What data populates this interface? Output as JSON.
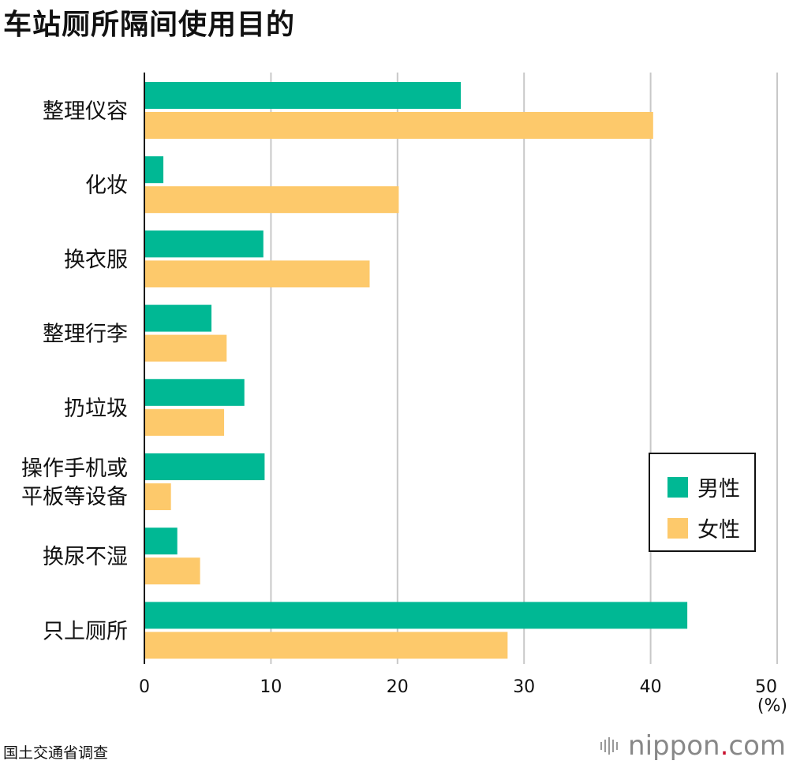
{
  "title": "车站厕所隔间使用目的",
  "source": "国土交通省调查",
  "logo": {
    "name": "nippon",
    "dot": ".",
    "suffix": "com"
  },
  "legend": [
    {
      "label": "男性",
      "color": "#00b894"
    },
    {
      "label": "女性",
      "color": "#fdc96b"
    }
  ],
  "chart_data": {
    "type": "bar",
    "orientation": "horizontal",
    "title": "车站厕所隔间使用目的",
    "categories": [
      [
        "整理仪容"
      ],
      [
        "化妆"
      ],
      [
        "换衣服"
      ],
      [
        "整理行李"
      ],
      [
        "扔垃圾"
      ],
      [
        "操作手机或",
        "平板等设备"
      ],
      [
        "换尿不湿"
      ],
      [
        "只上厕所"
      ]
    ],
    "series": [
      {
        "name": "男性",
        "color": "#00b894",
        "values": [
          25.0,
          1.5,
          9.4,
          5.3,
          7.9,
          9.5,
          2.6,
          42.9
        ]
      },
      {
        "name": "女性",
        "color": "#fdc96b",
        "values": [
          40.2,
          20.1,
          17.8,
          6.5,
          6.3,
          2.1,
          4.4,
          28.7
        ]
      }
    ],
    "xlim": [
      0,
      50
    ],
    "xticks": [
      0,
      10,
      20,
      30,
      40,
      50
    ],
    "unit_label": "(%)",
    "grid": true,
    "legend_position": "right"
  }
}
